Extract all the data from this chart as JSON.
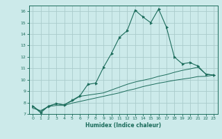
{
  "title": "",
  "xlabel": "Humidex (Indice chaleur)",
  "bg_color": "#cceaea",
  "grid_color": "#aacccc",
  "line_color": "#1a6b5a",
  "xlim": [
    -0.5,
    23.5
  ],
  "ylim": [
    7,
    16.5
  ],
  "xticks": [
    0,
    1,
    2,
    3,
    4,
    5,
    6,
    7,
    8,
    9,
    10,
    11,
    12,
    13,
    14,
    15,
    16,
    17,
    18,
    19,
    20,
    21,
    22,
    23
  ],
  "yticks": [
    7,
    8,
    9,
    10,
    11,
    12,
    13,
    14,
    15,
    16
  ],
  "main_x": [
    0,
    1,
    2,
    3,
    4,
    5,
    6,
    7,
    8,
    9,
    10,
    11,
    12,
    13,
    14,
    15,
    16,
    17,
    18,
    19,
    20,
    21,
    22,
    23
  ],
  "main_y": [
    7.7,
    7.1,
    7.7,
    7.9,
    7.8,
    8.2,
    8.6,
    9.6,
    9.7,
    11.1,
    12.3,
    13.7,
    14.3,
    16.1,
    15.5,
    15.0,
    16.2,
    14.6,
    12.0,
    11.4,
    11.5,
    11.2,
    10.5,
    10.4
  ],
  "line2_x": [
    0,
    1,
    2,
    3,
    4,
    5,
    6,
    7,
    8,
    9,
    10,
    11,
    12,
    13,
    14,
    15,
    16,
    17,
    18,
    19,
    20,
    21,
    22,
    23
  ],
  "line2_y": [
    7.7,
    7.2,
    7.7,
    7.9,
    7.8,
    8.15,
    8.55,
    8.65,
    8.75,
    8.85,
    9.1,
    9.35,
    9.6,
    9.8,
    9.95,
    10.1,
    10.3,
    10.45,
    10.65,
    10.82,
    10.95,
    11.1,
    10.5,
    10.4
  ],
  "line3_x": [
    0,
    1,
    2,
    3,
    4,
    5,
    6,
    7,
    8,
    9,
    10,
    11,
    12,
    13,
    14,
    15,
    16,
    17,
    18,
    19,
    20,
    21,
    22,
    23
  ],
  "line3_y": [
    7.5,
    7.3,
    7.65,
    7.75,
    7.75,
    7.95,
    8.1,
    8.25,
    8.4,
    8.55,
    8.7,
    8.85,
    9.05,
    9.2,
    9.4,
    9.55,
    9.7,
    9.82,
    9.95,
    10.05,
    10.15,
    10.28,
    10.3,
    10.4
  ]
}
